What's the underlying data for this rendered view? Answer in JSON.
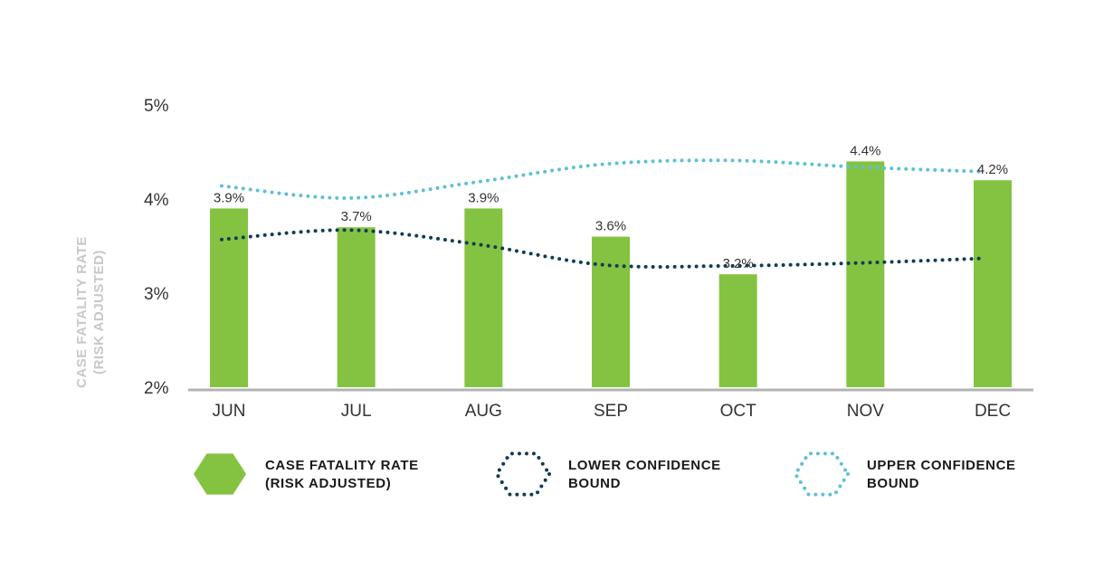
{
  "chart_data": {
    "type": "bar",
    "categories": [
      "JUN",
      "JUL",
      "AUG",
      "SEP",
      "OCT",
      "NOV",
      "DEC"
    ],
    "series": [
      {
        "name": "CASE FATALITY RATE (RISK ADJUSTED)",
        "type": "bar",
        "values": [
          3.9,
          3.7,
          3.9,
          3.6,
          3.2,
          4.4,
          4.2
        ],
        "color": "#84c341"
      },
      {
        "name": "LOWER CONFIDENCE BOUND",
        "type": "line",
        "style": "dotted",
        "values": [
          3.57,
          3.67,
          3.52,
          3.3,
          3.29,
          3.32,
          3.37
        ],
        "color": "#0f3d55"
      },
      {
        "name": "UPPER CONFIDENCE BOUND",
        "type": "line",
        "style": "dotted",
        "values": [
          4.14,
          4.01,
          4.18,
          4.37,
          4.41,
          4.34,
          4.29
        ],
        "color": "#5fc0d6"
      }
    ],
    "data_labels": [
      "3.9%",
      "3.7%",
      "3.9%",
      "3.6%",
      "3.2%",
      "4.4%",
      "4.2%"
    ],
    "y_ticks": [
      "2%",
      "3%",
      "4%",
      "5%"
    ],
    "ylim": [
      2,
      5
    ],
    "ylabel_lines": [
      "CASE FATALITY RATE",
      "(RISK ADJUSTED)"
    ],
    "xlabel": "",
    "title": "",
    "grid": false,
    "legend": {
      "position": "bottom",
      "items": [
        {
          "lines": [
            "CASE FATALITY RATE",
            "(RISK ADJUSTED)"
          ],
          "marker": "filled-hexagon",
          "color": "#84c341"
        },
        {
          "lines": [
            "LOWER CONFIDENCE",
            "BOUND"
          ],
          "marker": "dotted-hexagon",
          "color": "#0f3d55"
        },
        {
          "lines": [
            "UPPER CONFIDENCE",
            "BOUND"
          ],
          "marker": "dotted-hexagon",
          "color": "#5fc0d6"
        }
      ]
    },
    "axis_color": "#b3b3b3"
  }
}
